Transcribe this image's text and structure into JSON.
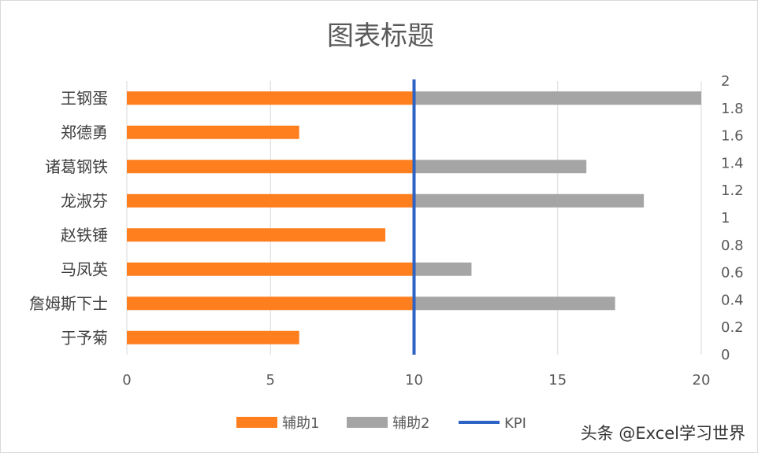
{
  "chart_data": {
    "type": "bar",
    "orientation": "horizontal",
    "title": "图表标题",
    "categories": [
      "王钢蛋",
      "郑德勇",
      "诸葛钢铁",
      "龙淑芬",
      "赵铁锤",
      "马凤英",
      "詹姆斯下士",
      "于予菊"
    ],
    "series": [
      {
        "name": "辅助1",
        "values": [
          10,
          6,
          10,
          10,
          9,
          10,
          10,
          6
        ],
        "color": "#ff7f1e"
      },
      {
        "name": "辅助2",
        "values": [
          10,
          0,
          6,
          8,
          0,
          2,
          7,
          0
        ],
        "color": "#a5a5a5"
      }
    ],
    "kpi": {
      "name": "KPI",
      "value": 10,
      "color": "#2e63c6"
    },
    "x_axis": {
      "min": 0,
      "max": 20,
      "ticks": [
        "0",
        "5",
        "10",
        "15",
        "20"
      ]
    },
    "y2_axis": {
      "min": 0,
      "max": 2,
      "ticks": [
        "0",
        "0.2",
        "0.4",
        "0.6",
        "0.8",
        "1",
        "1.2",
        "1.4",
        "1.6",
        "1.8",
        "2"
      ]
    },
    "grid": true,
    "legend": "bottom",
    "stacked": true
  },
  "watermark": "头条 @Excel学习世界"
}
